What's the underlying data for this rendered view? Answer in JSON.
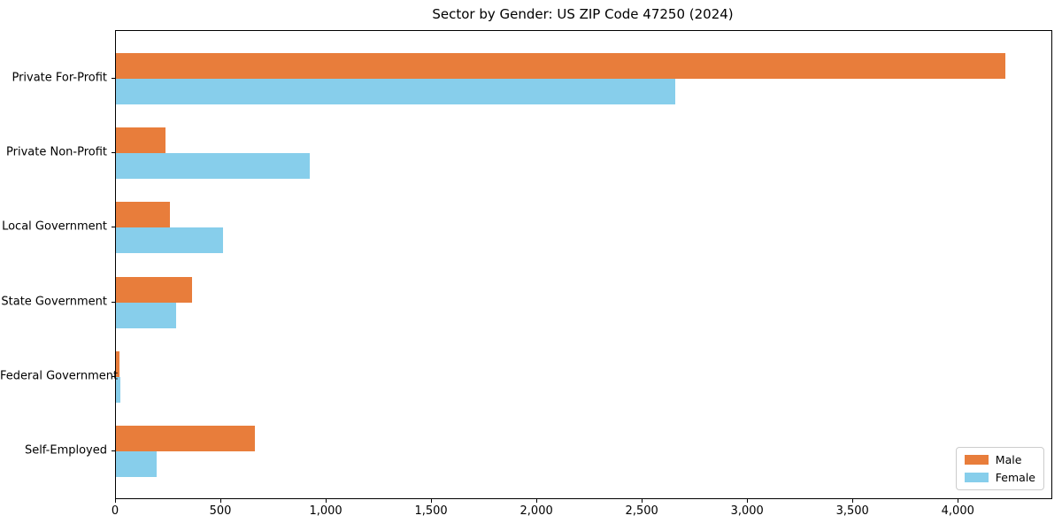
{
  "chart_data": {
    "type": "bar",
    "orientation": "horizontal",
    "title": "Sector by Gender: US ZIP Code 47250 (2024)",
    "categories": [
      "Private For-Profit",
      "Private Non-Profit",
      "Local Government",
      "State Government",
      "Federal Government",
      "Self-Employed"
    ],
    "series": [
      {
        "name": "Male",
        "color": "#E87D3B",
        "values": [
          4220,
          235,
          255,
          360,
          15,
          660
        ]
      },
      {
        "name": "Female",
        "color": "#87CEEB",
        "values": [
          2655,
          920,
          510,
          285,
          20,
          195
        ]
      }
    ],
    "xlim": [
      0,
      4440
    ],
    "xticks": [
      0,
      500,
      1000,
      1500,
      2000,
      2500,
      3000,
      3500,
      4000
    ],
    "xtick_labels": [
      "0",
      "500",
      "1,000",
      "1,500",
      "2,000",
      "2,500",
      "3,000",
      "3,500",
      "4,000"
    ],
    "ylabel": "",
    "xlabel": "",
    "grid": false,
    "legend_position": "lower right"
  }
}
